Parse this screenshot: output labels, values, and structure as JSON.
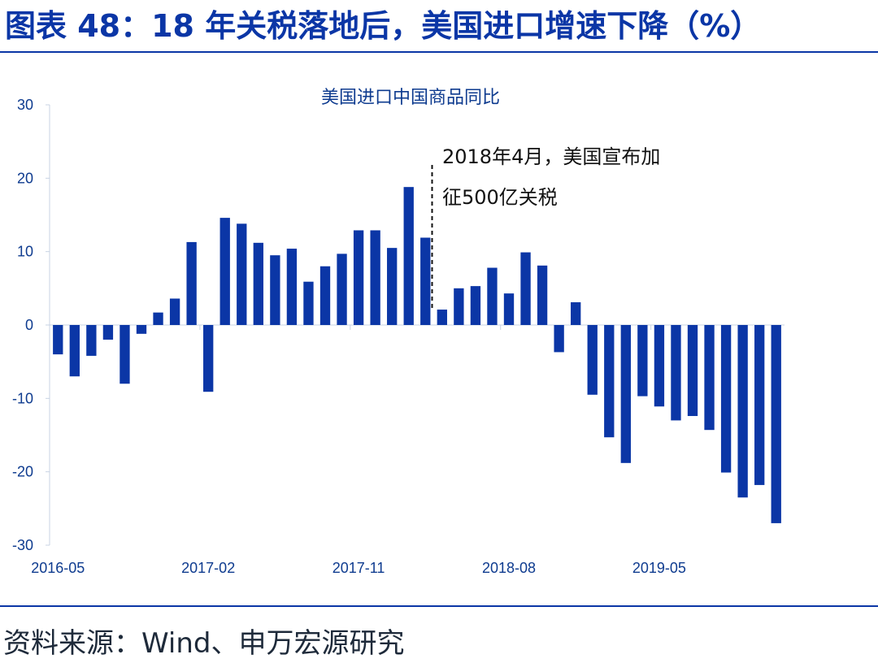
{
  "header": {
    "title": "图表 48：18 年关税落地后，美国进口增速下降（%）"
  },
  "footer": {
    "source": "资料来源：Wind、申万宏源研究"
  },
  "chart_data": {
    "type": "bar",
    "title": "美国进口中国商品同比",
    "xlabel": "",
    "ylabel": "",
    "ylim": [
      -30,
      30
    ],
    "yticks": [
      30,
      20,
      10,
      0,
      -10,
      -20,
      -30
    ],
    "bar_color": "#0b36a6",
    "grid": false,
    "x_tick_labels": [
      "2016-05",
      "2017-02",
      "2017-11",
      "2018-08",
      "2019-05"
    ],
    "categories": [
      "2016-05",
      "2016-06",
      "2016-07",
      "2016-08",
      "2016-09",
      "2016-10",
      "2016-11",
      "2016-12",
      "2017-01",
      "2017-02",
      "2017-03",
      "2017-04",
      "2017-05",
      "2017-06",
      "2017-07",
      "2017-08",
      "2017-09",
      "2017-10",
      "2017-11",
      "2017-12",
      "2018-01",
      "2018-02",
      "2018-03",
      "2018-04",
      "2018-05",
      "2018-06",
      "2018-07",
      "2018-08",
      "2018-09",
      "2018-10",
      "2018-11",
      "2018-12",
      "2019-01",
      "2019-02",
      "2019-03",
      "2019-04",
      "2019-05",
      "2019-06",
      "2019-07",
      "2019-08",
      "2019-09",
      "2019-10",
      "2019-11",
      "2019-12"
    ],
    "values": [
      -4.0,
      -7.0,
      -4.2,
      -2.0,
      -8.0,
      -1.2,
      1.7,
      3.6,
      11.3,
      -9.1,
      14.6,
      13.8,
      11.2,
      9.5,
      10.4,
      5.9,
      8.0,
      9.7,
      12.9,
      12.9,
      10.5,
      18.8,
      11.9,
      2.1,
      5.0,
      5.3,
      7.8,
      4.3,
      9.9,
      8.1,
      -3.7,
      3.1,
      -9.5,
      -15.3,
      -18.8,
      -9.7,
      -11.1,
      -13.0,
      -12.4,
      -14.3,
      -20.1,
      -23.5,
      -21.8,
      -27.0
    ],
    "annotation": {
      "line1": "2018年4月，美国宣布加",
      "line2": "征500亿关税",
      "at_category": "2018-04"
    }
  }
}
